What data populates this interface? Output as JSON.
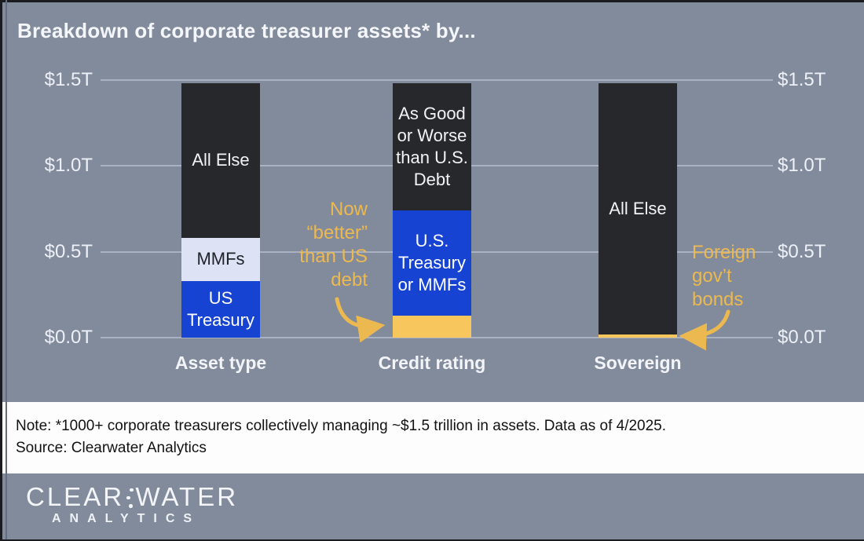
{
  "header": {
    "title": "Breakdown of corporate treasurer assets* by..."
  },
  "chart_data": {
    "type": "bar",
    "stacked": true,
    "title": "Breakdown of corporate treasurer assets* by...",
    "unit": "trillions of USD",
    "ylim": [
      0,
      1.5
    ],
    "grid": true,
    "y_axis_sides": "both",
    "y_ticks": [
      "$0.0T",
      "$0.5T",
      "$1.0T",
      "$1.5T"
    ],
    "y_tick_values": [
      0,
      0.5,
      1.0,
      1.5
    ],
    "categories": [
      "Asset type",
      "Credit rating",
      "Sovereign"
    ],
    "bars": [
      {
        "category": "Asset type",
        "segments": [
          {
            "label": "US Treasury",
            "value": 0.33,
            "color_key": "blue"
          },
          {
            "label": "MMFs",
            "value": 0.25,
            "color_key": "lavender"
          },
          {
            "label": "All Else",
            "value": 0.9,
            "color_key": "dark"
          }
        ]
      },
      {
        "category": "Credit rating",
        "segments": [
          {
            "label": "",
            "value": 0.13,
            "color_key": "yellow"
          },
          {
            "label": "U.S. Treasury or MMFs",
            "value": 0.61,
            "color_key": "blue"
          },
          {
            "label": "As Good or Worse than U.S. Debt",
            "value": 0.74,
            "color_key": "dark"
          }
        ]
      },
      {
        "category": "Sovereign",
        "segments": [
          {
            "label": "",
            "value": 0.02,
            "color_key": "yellow"
          },
          {
            "label": "All Else",
            "value": 1.46,
            "color_key": "dark"
          }
        ]
      }
    ],
    "annotations": [
      {
        "text": "Now “better” than US debt",
        "target": "Credit rating yellow segment"
      },
      {
        "text": "Foreign gov’t bonds",
        "target": "Sovereign yellow segment"
      }
    ]
  },
  "colors": {
    "background": "#828b9c",
    "bar_dark": "#26282b",
    "bar_blue": "#1743d3",
    "bar_lavender": "#dde2f4",
    "bar_yellow": "#f7c75e",
    "annotation_yellow": "#ecb950",
    "gridline": "#aab2c1",
    "axis_text": "#edf0f7",
    "title_text": "#f4f6f9"
  },
  "footnote": {
    "note": "Note: *1000+ corporate treasurers collectively managing ~$1.5 trillion in assets. Data as of 4/2025.",
    "source": "Source: Clearwater Analytics"
  },
  "footer": {
    "brand_top_left": "CLEAR",
    "brand_top_right": "WATER",
    "brand_bottom": "ANALYTICS"
  }
}
